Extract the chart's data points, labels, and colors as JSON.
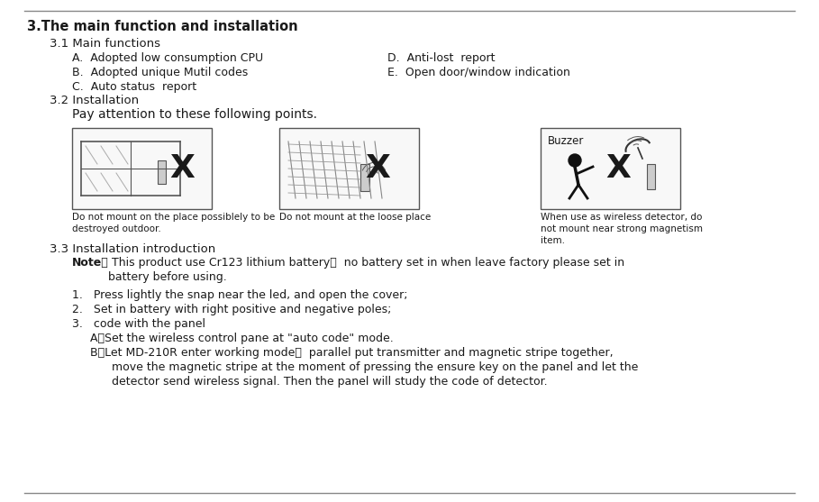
{
  "bg_color": "#ffffff",
  "title": "3.The main function and installation",
  "section_31": "3.1 Main functions",
  "items_left": [
    "A.  Adopted low consumption CPU",
    "B.  Adopted unique Mutil codes",
    "C.  Auto status  report"
  ],
  "items_right": [
    "D.  Anti-lost  report",
    "E.  Open door/window indication"
  ],
  "section_32": "3.2 Installation",
  "pay_attention": "Pay attention to these following points.",
  "caption1": "Do not mount on the place possiblely to be\ndestroyed outdoor.",
  "caption2": "Do not mount at the loose place",
  "caption3": "When use as wireless detector, do\nnot mount near strong magnetism\nitem.",
  "section_33": "3.3 Installation introduction",
  "note_bold": "Note：",
  "note_rest": "  This product use Cr123 lithium battery，  no battery set in when leave factory please set in",
  "note_line2": "          battery before using.",
  "steps": [
    "1.   Press lightly the snap near the led, and open the cover;",
    "2.   Set in battery with right positive and negative poles;",
    "3.   code with the panel"
  ],
  "sub_steps": [
    "A、Set the wireless control pane at \"auto code\" mode.",
    "B、Let MD-210R enter working mode，  parallel put transmitter and magnetic stripe together,",
    "      move the magnetic stripe at the moment of pressing the ensure key on the panel and let the",
    "      detector send wireless signal. Then the panel will study the code of detector."
  ],
  "text_color": "#1a1a1a"
}
